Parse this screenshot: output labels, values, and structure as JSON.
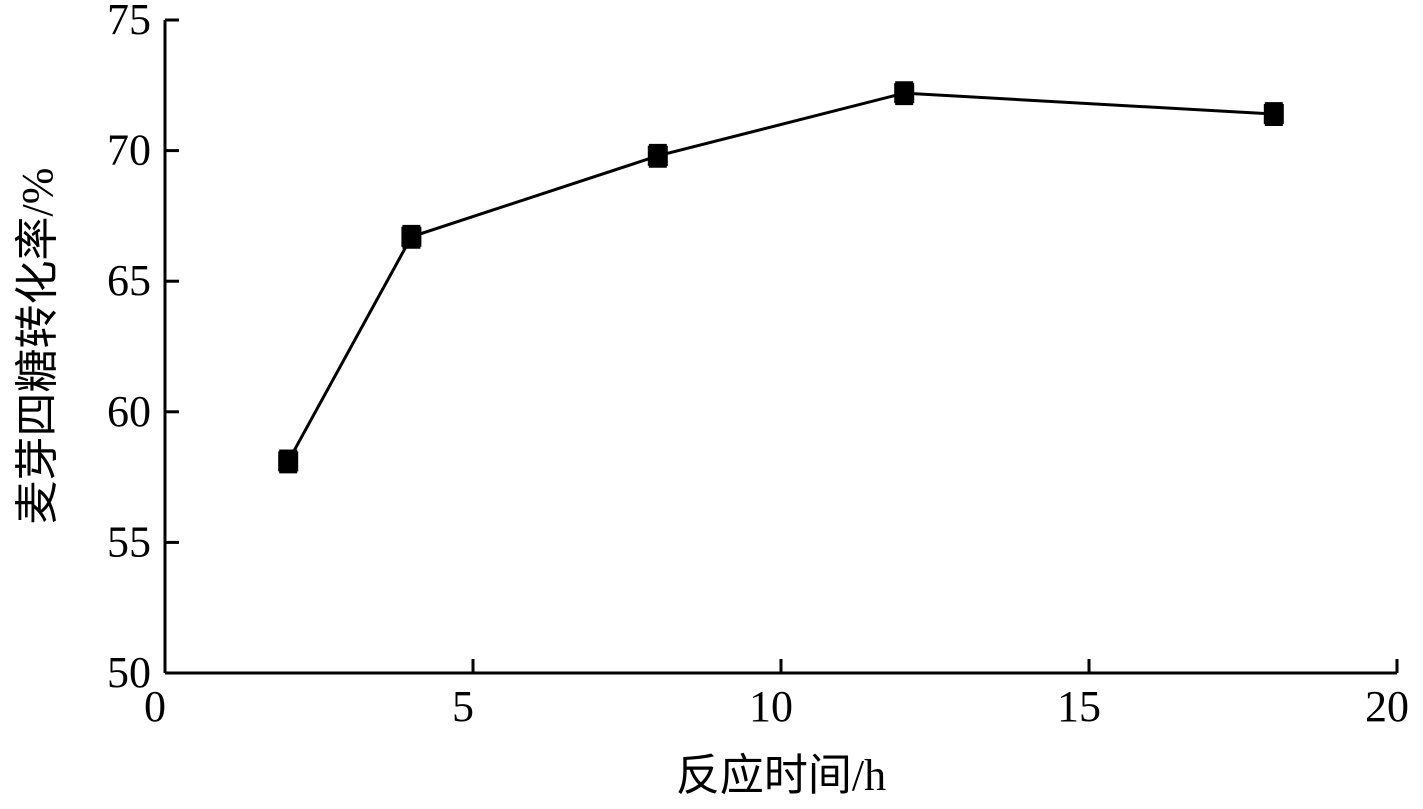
{
  "chart_data": {
    "type": "line",
    "x_label": "反应时间/h",
    "y_label": "麦芽四糖转化率/%",
    "x": [
      2,
      4,
      8,
      12,
      18
    ],
    "series": [
      {
        "name": "麦芽四糖转化率",
        "color": "#000000",
        "values": [
          58.1,
          66.7,
          69.8,
          72.2,
          71.4
        ],
        "errors": [
          0.4,
          0.4,
          0.4,
          0.4,
          0.4
        ]
      }
    ],
    "xlim": [
      0,
      20
    ],
    "xticks": [
      0,
      5,
      10,
      15,
      20
    ],
    "ylim": [
      50,
      75
    ],
    "yticks": [
      50,
      55,
      60,
      65,
      70,
      75
    ],
    "grid": false
  }
}
